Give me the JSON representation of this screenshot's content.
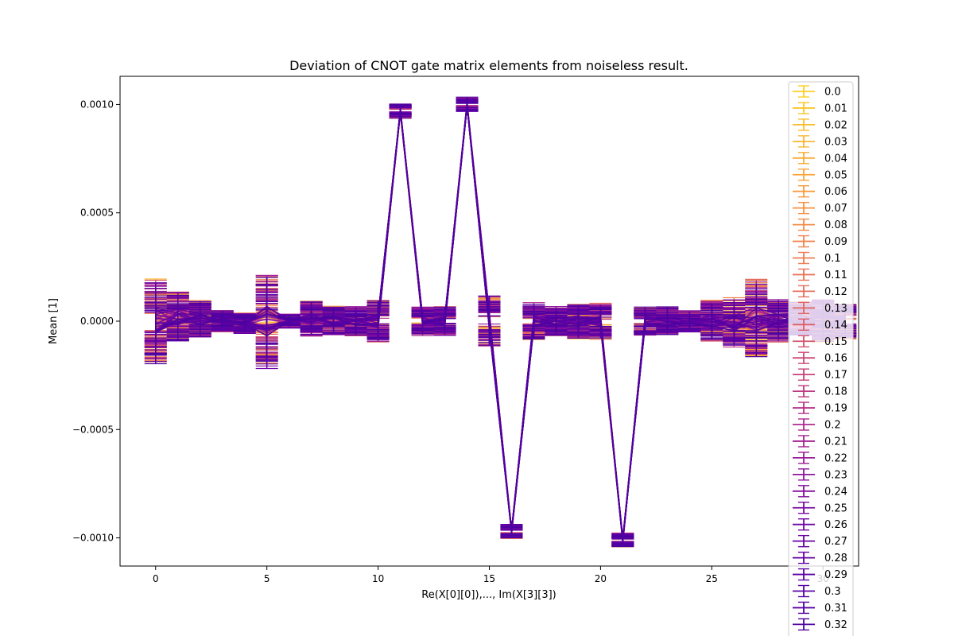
{
  "chart_data": {
    "type": "line",
    "title": "Deviation of CNOT gate matrix elements from noiseless result.",
    "xlabel": "Re(X[0][0]),..., Im(X[3][3])",
    "ylabel": "Mean [1]",
    "xlim": [
      -1.6,
      31.6
    ],
    "ylim": [
      -0.00113,
      0.00113
    ],
    "xticks": [
      0,
      5,
      10,
      15,
      20,
      25,
      30
    ],
    "xtick_labels": [
      "0",
      "5",
      "10",
      "15",
      "20",
      "25",
      "30"
    ],
    "yticks": [
      0.001,
      0.0005,
      0.0,
      -0.0005,
      -0.001
    ],
    "ytick_labels": [
      "0.0010",
      "0.0005",
      "0.0000",
      "−0.0005",
      "−0.0010"
    ],
    "x": [
      0,
      1,
      2,
      3,
      4,
      5,
      6,
      7,
      8,
      9,
      10,
      11,
      12,
      13,
      14,
      15,
      16,
      17,
      18,
      19,
      20,
      21,
      22,
      23,
      24,
      25,
      26,
      27,
      28,
      29,
      30,
      31
    ],
    "base_values": [
      0.0,
      2e-05,
      1e-05,
      0.0,
      -1e-05,
      0.0,
      0.0,
      1e-05,
      0.0,
      0.0,
      0.0,
      0.00097,
      0.0,
      0.0,
      0.001,
      0.0,
      -0.00097,
      0.0,
      0.0,
      0.0,
      0.0,
      -0.00101,
      0.0,
      0.0,
      0.0,
      0.0,
      -1e-05,
      1e-05,
      0.0,
      1e-05,
      0.0,
      0.0
    ],
    "error_half_widths": [
      0.00012,
      7e-05,
      5e-05,
      3e-05,
      3e-05,
      0.00013,
      2e-05,
      5e-05,
      4e-05,
      4e-05,
      6e-05,
      2e-05,
      4e-05,
      4e-05,
      2e-05,
      7e-05,
      2e-05,
      5e-05,
      4e-05,
      5e-05,
      5e-05,
      2e-05,
      4e-05,
      4e-05,
      3e-05,
      6e-05,
      7e-05,
      0.00011,
      6e-05,
      5e-05,
      6e-05,
      5e-05
    ],
    "colormap": [
      "#fccf25",
      "#f89540",
      "#e16462",
      "#b12a90",
      "#6a00a8",
      "#4a02a0"
    ],
    "legend_position": "upper-right",
    "legend_labels": [
      "0.0",
      "0.01",
      "0.02",
      "0.03",
      "0.04",
      "0.05",
      "0.06",
      "0.07",
      "0.08",
      "0.09",
      "0.1",
      "0.11",
      "0.12",
      "0.13",
      "0.14",
      "0.15",
      "0.16",
      "0.17",
      "0.18",
      "0.19",
      "0.2",
      "0.21",
      "0.22",
      "0.23",
      "0.24",
      "0.25",
      "0.26",
      "0.27",
      "0.28",
      "0.29",
      "0.3",
      "0.31",
      "0.32"
    ]
  }
}
